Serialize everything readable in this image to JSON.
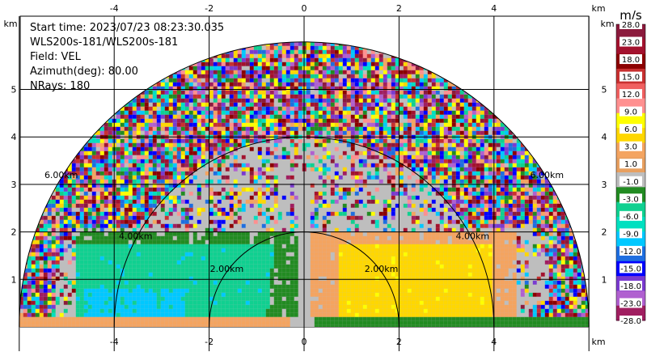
{
  "info": {
    "start_time": "Start time: 2023/07/23 08:23:30.035",
    "instrument": "WLS200s-181/WLS200s-181",
    "field": "Field: VEL",
    "azimuth": "Azimuth(deg): 80.00",
    "nrays": "NRays: 180"
  },
  "colorbar": {
    "unit": "m/s",
    "levels": [
      "28.0",
      "23.0",
      "18.0",
      "15.0",
      "12.0",
      "9.0",
      "6.0",
      "3.0",
      "1.0",
      "-1.0",
      "-3.0",
      "-6.0",
      "-9.0",
      "-12.0",
      "-15.0",
      "-18.0",
      "-23.0",
      "-28.0"
    ],
    "colors": [
      "#8b1a3c",
      "#a3122e",
      "#8b0000",
      "#c83030",
      "#f06060",
      "#ff9090",
      "#ffff00",
      "#ffd700",
      "#f4a460",
      "#e8a060",
      "#bebebe",
      "#228b22",
      "#10d090",
      "#00e0c0",
      "#00c8ff",
      "#1e6ee0",
      "#0000ff",
      "#7a3ad0",
      "#b060d0",
      "#a01e60"
    ]
  },
  "chart_data": {
    "type": "heatmap",
    "title": "",
    "x_unit": "km",
    "y_unit": "km",
    "x_ticks": [
      -4,
      -2,
      0,
      2,
      4
    ],
    "y_ticks": [
      1,
      2,
      3,
      4,
      5
    ],
    "xlim": [
      -6.0,
      6.0
    ],
    "ylim": [
      0,
      6.0
    ],
    "ring_labels": [
      "2.00km",
      "2.00km",
      "4.00km",
      "4.00km",
      "6.00km",
      "6.00km"
    ],
    "range_rings_km": [
      2,
      4,
      6
    ],
    "max_range_km": 6.0
  }
}
